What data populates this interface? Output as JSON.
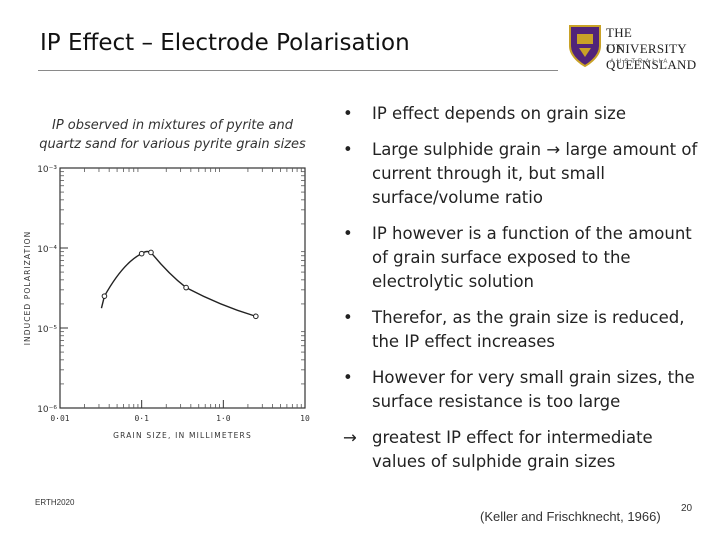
{
  "slide": {
    "title": "IP Effect – Electrode Polarisation",
    "footer_left": "ERTH2020",
    "citation": "(Keller and Frischknecht, 1966)",
    "page_number": "20"
  },
  "logo": {
    "line1": "THE UNIVERSITY",
    "line2": "OF QUEENSLAND",
    "line3": "AUSTRALIA",
    "colors": {
      "shield": "#51247a",
      "gold": "#c9a227"
    }
  },
  "caption": {
    "line1": "IP observed in mixtures of pyrite and",
    "line2": "quartz sand for various pyrite grain sizes"
  },
  "bullets": [
    {
      "marker": "•",
      "text": "IP effect depends on grain size"
    },
    {
      "marker": "•",
      "text": "Large sulphide grain → large amount of current through it, but small surface/volume ratio"
    },
    {
      "marker": "•",
      "text": "IP however is a function of the amount of grain surface exposed to the electrolytic solution"
    },
    {
      "marker": "•",
      "text": "Therefor, as the grain size is reduced, the IP effect increases"
    },
    {
      "marker": "•",
      "text": "However for very small grain sizes, the surface resistance is too large"
    },
    {
      "marker": "→",
      "text": "greatest IP effect for intermediate values of sulphide grain sizes"
    }
  ],
  "chart_data": {
    "type": "line",
    "title": "",
    "xlabel": "GRAIN SIZE, IN MILLIMETERS",
    "ylabel": "INDUCED POLARIZATION",
    "x_scale": "log",
    "y_scale": "log",
    "xlim": [
      0.01,
      10
    ],
    "ylim": [
      1e-06,
      0.001
    ],
    "x_ticks": [
      {
        "value": 0.01,
        "label": "0·01"
      },
      {
        "value": 0.1,
        "label": "0·1"
      },
      {
        "value": 1,
        "label": "1·0"
      },
      {
        "value": 10,
        "label": "10"
      }
    ],
    "y_ticks": [
      {
        "value": 0.001,
        "label": "10⁻³"
      },
      {
        "value": 0.0001,
        "label": "10⁻⁴"
      },
      {
        "value": 1e-05,
        "label": "10⁻⁵"
      },
      {
        "value": 1e-06,
        "label": "10⁻⁶"
      }
    ],
    "series": [
      {
        "name": "pyrite-quartz mixture",
        "x": [
          0.035,
          0.1,
          0.13,
          0.35,
          2.5
        ],
        "y": [
          2.5e-05,
          8.5e-05,
          8.8e-05,
          3.2e-05,
          1.4e-05
        ]
      }
    ]
  }
}
